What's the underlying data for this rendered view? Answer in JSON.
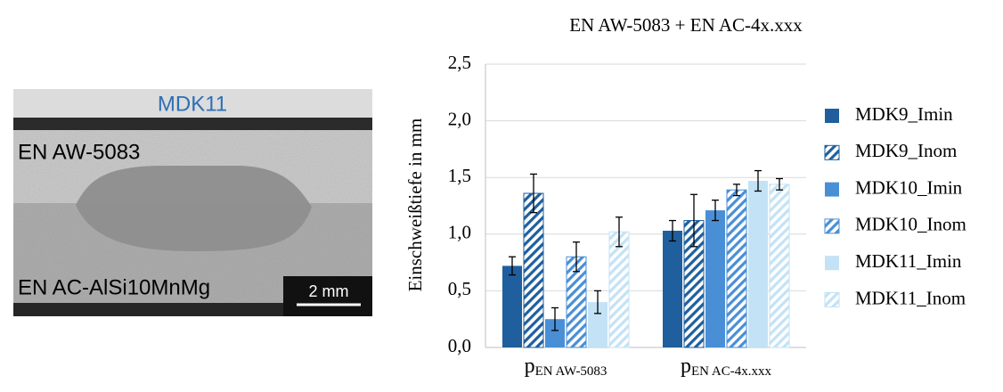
{
  "micrograph": {
    "label": "MDK11",
    "top_material": "EN AW-5083",
    "bottom_material": "EN AC-AlSi10MnMg",
    "scale": "2 mm"
  },
  "chart_data": {
    "type": "bar",
    "title": "EN AW-5083 + EN AC-4x.xxx",
    "y_label": "Einschweißtiefe in mm",
    "categories": [
      {
        "symbol": "p",
        "subscript": "EN AW-5083"
      },
      {
        "symbol": "p",
        "subscript": "EN AC-4x.xxx"
      }
    ],
    "ylim": [
      0,
      2.5
    ],
    "yticks": [
      {
        "value": 0,
        "label": "0,0"
      },
      {
        "value": 0.5,
        "label": "0,5"
      },
      {
        "value": 1,
        "label": "1,0"
      },
      {
        "value": 1.5,
        "label": "1,5"
      },
      {
        "value": 2,
        "label": "2,0"
      },
      {
        "value": 2.5,
        "label": "2,5"
      }
    ],
    "grid": true,
    "legend": "right",
    "series": [
      {
        "name": "MDK9_Imin",
        "color": "#1f5f9e",
        "pattern": "solid",
        "values": [
          0.72,
          1.03
        ],
        "errors": [
          0.08,
          0.09
        ]
      },
      {
        "name": "MDK9_Inom",
        "color": "#1f5f9e",
        "pattern": "hatch",
        "values": [
          1.36,
          1.12
        ],
        "errors": [
          0.17,
          0.23
        ]
      },
      {
        "name": "MDK10_Imin",
        "color": "#4a8fd6",
        "pattern": "solid",
        "values": [
          0.25,
          1.21
        ],
        "errors": [
          0.1,
          0.09
        ]
      },
      {
        "name": "MDK10_Inom",
        "color": "#4a8fd6",
        "pattern": "hatch",
        "values": [
          0.8,
          1.39
        ],
        "errors": [
          0.13,
          0.05
        ]
      },
      {
        "name": "MDK11_Imin",
        "color": "#c3e2f5",
        "pattern": "solid",
        "values": [
          0.4,
          1.47
        ],
        "errors": [
          0.1,
          0.09
        ]
      },
      {
        "name": "MDK11_Inom",
        "color": "#c3e2f5",
        "pattern": "hatch",
        "values": [
          1.02,
          1.44
        ],
        "errors": [
          0.13,
          0.05
        ]
      }
    ]
  }
}
